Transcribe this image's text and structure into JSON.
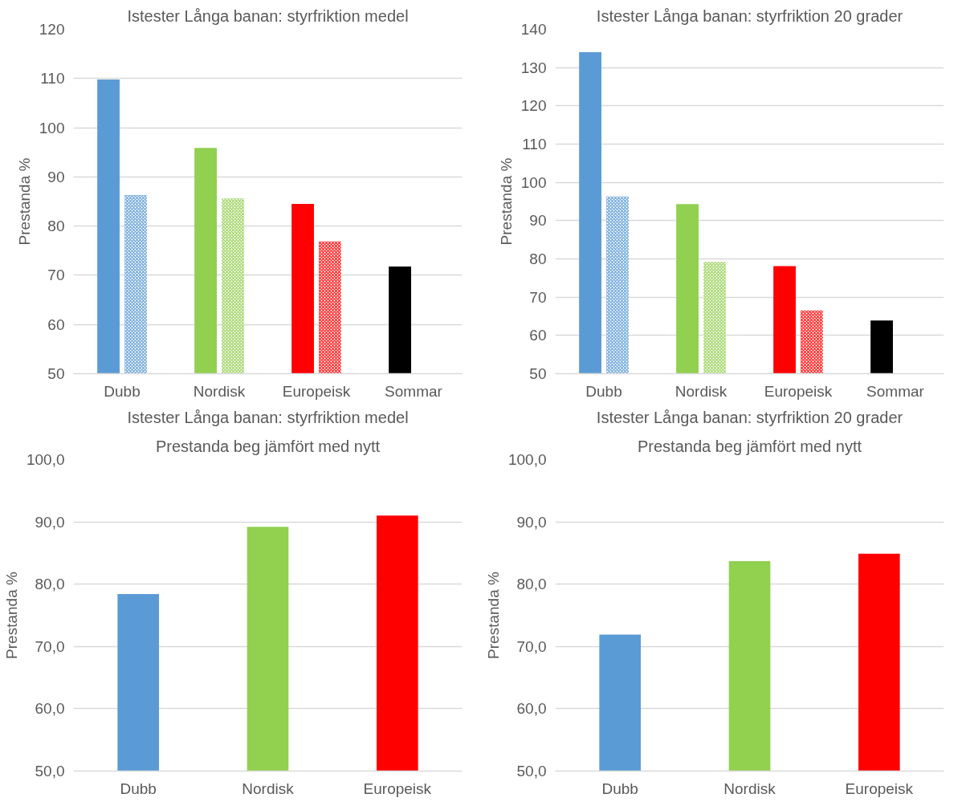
{
  "chart_data": [
    {
      "type": "bar",
      "title": "Istester Långa banan: styrfriktion medel",
      "ylabel": "Prestanda %",
      "categories": [
        "Dubb",
        "Nordisk",
        "Europeisk",
        "Sommar"
      ],
      "series": [
        {
          "colors": [
            "#5b9bd5",
            "#92d050",
            "#ff0000",
            "#000000"
          ],
          "values": [
            109.8,
            95.9,
            84.5,
            71.8
          ]
        },
        {
          "colors": [
            "#5b9bd5",
            "#92d050",
            "#ff0000",
            "#000000"
          ],
          "values": [
            86.3,
            85.6,
            76.9,
            null
          ]
        }
      ],
      "ylim": [
        50,
        120
      ],
      "yticks": [
        50,
        60,
        70,
        80,
        90,
        100,
        110,
        120
      ],
      "grid": "y"
    },
    {
      "type": "bar",
      "title": "Istester Långa banan: styrfriktion 20 grader",
      "ylabel": "Prestanda %",
      "categories": [
        "Dubb",
        "Nordisk",
        "Europeisk",
        "Sommar"
      ],
      "series": [
        {
          "colors": [
            "#5b9bd5",
            "#92d050",
            "#ff0000",
            "#000000"
          ],
          "values": [
            134.0,
            94.3,
            78.1,
            63.9
          ]
        },
        {
          "colors": [
            "#5b9bd5",
            "#92d050",
            "#ff0000",
            "#000000"
          ],
          "values": [
            96.3,
            79.2,
            66.5,
            null
          ]
        }
      ],
      "ylim": [
        50,
        140
      ],
      "yticks": [
        50,
        60,
        70,
        80,
        90,
        100,
        110,
        120,
        130,
        140
      ],
      "grid": "y"
    },
    {
      "type": "bar",
      "title": "Istester Långa banan: styrfriktion medel",
      "subtitle": "Prestanda beg jämfört med nytt",
      "ylabel": "Prestanda %",
      "categories": [
        "Dubb",
        "Nordisk",
        "Europeisk"
      ],
      "colors": [
        "#5b9bd5",
        "#92d050",
        "#ff0000"
      ],
      "values": [
        78.4,
        89.2,
        91.0
      ],
      "ylim": [
        50,
        100
      ],
      "yticks": [
        {
          "value": 50,
          "label": "50,0"
        },
        {
          "value": 60,
          "label": "60,0"
        },
        {
          "value": 70,
          "label": "70,0"
        },
        {
          "value": 80,
          "label": "80,0"
        },
        {
          "value": 90,
          "label": "90,0"
        },
        {
          "value": 100,
          "label": "100,0"
        }
      ],
      "grid": "y"
    },
    {
      "type": "bar",
      "title": "Istester Långa banan: styrfriktion 20 grader",
      "subtitle": "Prestanda beg jämfört med nytt",
      "ylabel": "Prestanda %",
      "categories": [
        "Dubb",
        "Nordisk",
        "Europeisk"
      ],
      "colors": [
        "#5b9bd5",
        "#92d050",
        "#ff0000"
      ],
      "values": [
        71.9,
        83.7,
        84.9
      ],
      "ylim": [
        50,
        100
      ],
      "yticks": [
        {
          "value": 50,
          "label": "50,0"
        },
        {
          "value": 60,
          "label": "60,0"
        },
        {
          "value": 70,
          "label": "70,0"
        },
        {
          "value": 80,
          "label": "80,0"
        },
        {
          "value": 90,
          "label": "90,0"
        },
        {
          "value": 100,
          "label": "100,0"
        }
      ],
      "grid": "y"
    }
  ]
}
